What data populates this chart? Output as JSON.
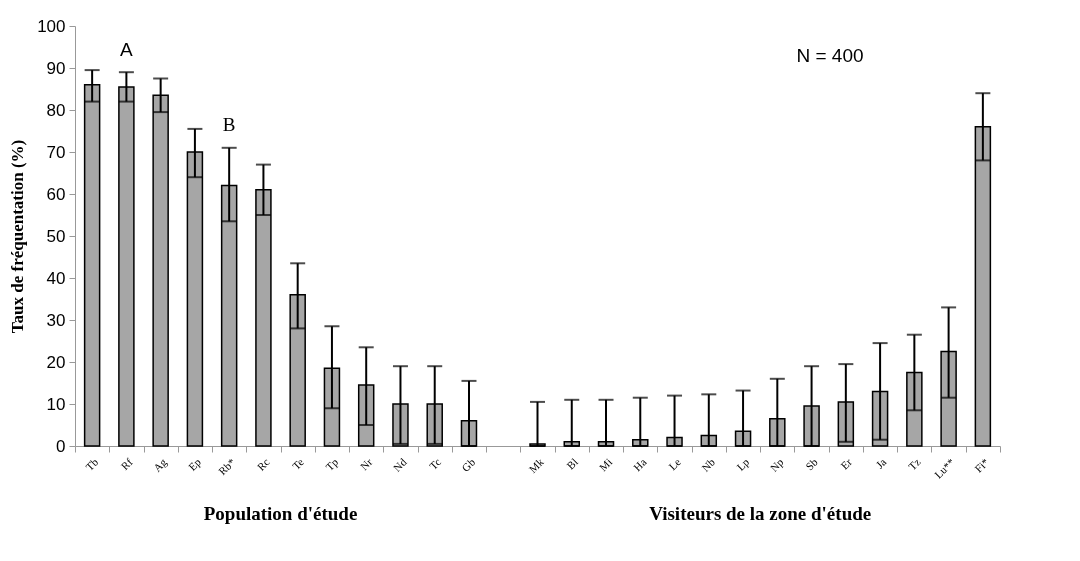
{
  "chart_data": {
    "type": "bar",
    "ylabel": "Taux de fréquentation (%)",
    "categories": [
      "Tb",
      "Rf",
      "Ag",
      "Ep",
      "Rb*",
      "Rc",
      "Te",
      "Tp",
      "Nr",
      "Nd",
      "Tc",
      "Gb",
      null,
      "Mk",
      "Bl",
      "Mi",
      "Ha",
      "Le",
      "Nb",
      "Lp",
      "Np",
      "Sb",
      "Er",
      "Ja",
      "Tz",
      "Lu**",
      "Fi*"
    ],
    "values": [
      86,
      85.5,
      83.5,
      70,
      62,
      61,
      36,
      18.5,
      14.5,
      10,
      10,
      6,
      null,
      0.5,
      1,
      1,
      1.5,
      2,
      2.5,
      3.5,
      6.5,
      9.5,
      10.5,
      13,
      17.5,
      22.5,
      76
    ],
    "errors": [
      [
        82,
        89.5
      ],
      [
        82,
        89
      ],
      [
        79.5,
        87.5
      ],
      [
        64,
        75.5
      ],
      [
        53.5,
        71
      ],
      [
        55,
        67
      ],
      [
        28,
        43.5
      ],
      [
        9,
        28.5
      ],
      [
        5,
        23.5
      ],
      [
        0.5,
        19
      ],
      [
        0.5,
        19
      ],
      [
        0,
        15.5
      ],
      null,
      [
        0,
        10.5
      ],
      [
        0,
        11
      ],
      [
        0,
        11
      ],
      [
        0,
        11.5
      ],
      [
        0,
        12
      ],
      [
        0,
        12.3
      ],
      [
        0,
        13.2
      ],
      [
        0,
        16
      ],
      [
        0,
        19
      ],
      [
        1,
        19.5
      ],
      [
        1.5,
        24.5
      ],
      [
        8.5,
        26.5
      ],
      [
        11.5,
        33
      ],
      [
        68,
        84
      ]
    ],
    "color": "#a6a6a6",
    "ylim": [
      0,
      100
    ],
    "yticks": [
      0,
      10,
      20,
      30,
      40,
      50,
      60,
      70,
      80,
      90,
      100
    ],
    "annotations": [
      "A",
      "B",
      "N = 400",
      "Population d'étude",
      "Visiteurs de la zone d'étude"
    ]
  }
}
